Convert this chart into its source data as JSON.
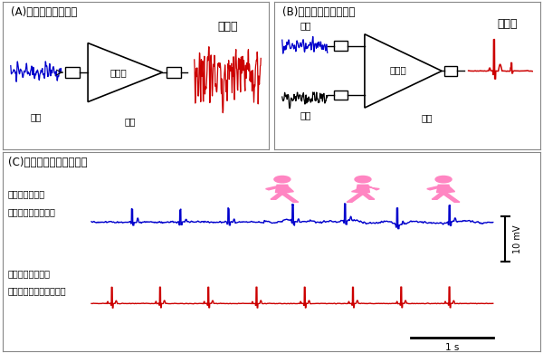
{
  "title_A": "(A)单端放大（以往）",
  "title_B": "(B)差动放大（本研究）",
  "title_C": "(C)走路时测量的心电信号",
  "label_amplifier": "放大器",
  "label_input_A": "输入",
  "label_output_A": "输出",
  "label_input_B": "输入",
  "label_output_B": "输出",
  "label_ref_B": "参考",
  "label_noise_big": "噪声大",
  "label_noise_small": "噪声小",
  "label_blue_ecg_1": "以往的心电波形",
  "label_blue_ecg_2": "（有身体运动噪声）",
  "label_red_ecg_1": "本研究的心电波形",
  "label_red_ecg_2": "（去除了身体运动噪声）",
  "scale_y": "10 mV",
  "scale_x": "1 s",
  "color_blue": "#0000CC",
  "color_red": "#CC0000",
  "color_black": "#000000",
  "color_pink": "#FF85C2",
  "bg_color": "#FFFFFF",
  "border_color": "#888888"
}
